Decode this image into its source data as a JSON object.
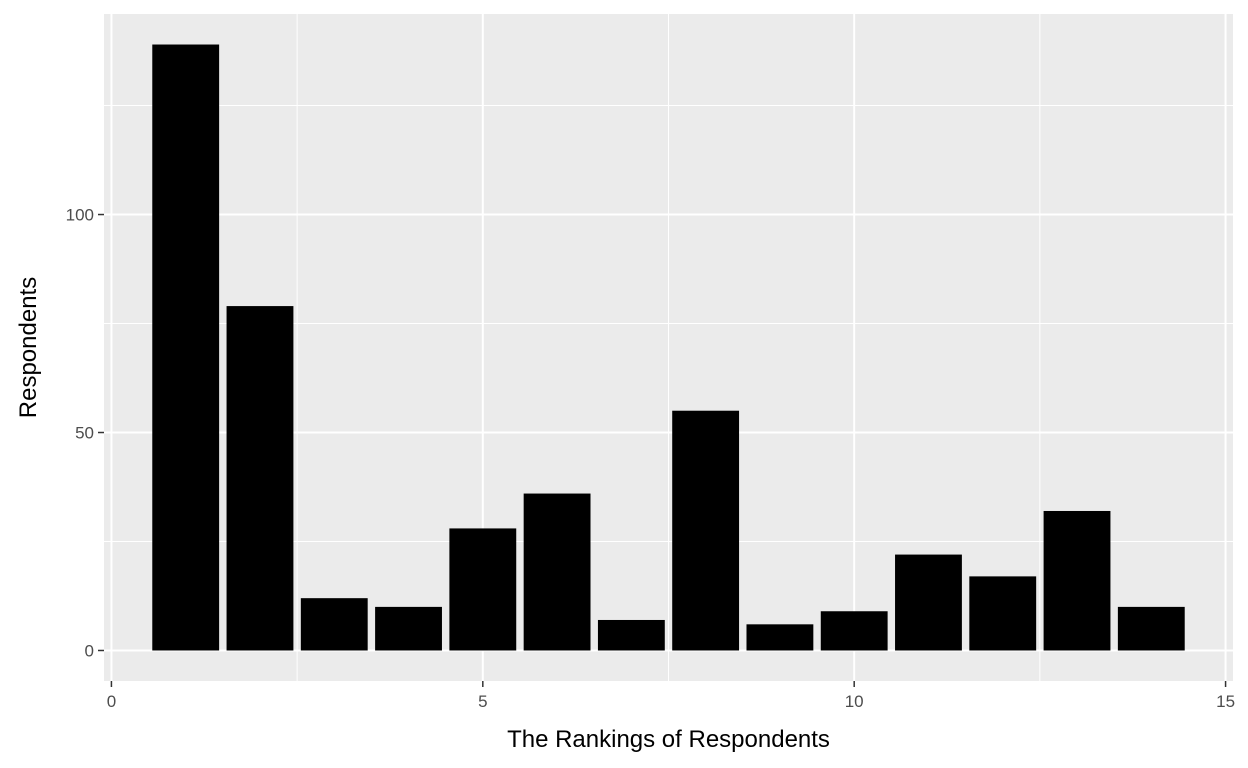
{
  "chart_data": {
    "type": "bar",
    "title": "",
    "xlabel": "The Rankings of Respondents",
    "ylabel": "Respondents",
    "x": [
      1,
      2,
      3,
      4,
      5,
      6,
      7,
      8,
      9,
      10,
      11,
      12,
      13,
      14
    ],
    "values": [
      139,
      79,
      12,
      10,
      28,
      36,
      7,
      55,
      6,
      9,
      22,
      17,
      32,
      10
    ],
    "xlim": [
      -0.1,
      15.1
    ],
    "ylim": [
      -7,
      146
    ],
    "xticks": [
      0,
      5,
      10,
      15
    ],
    "yticks": [
      0,
      50,
      100
    ],
    "grid": true,
    "bar_color": "#000000",
    "panel_background": "#ebebeb",
    "grid_color": "#ffffff"
  }
}
